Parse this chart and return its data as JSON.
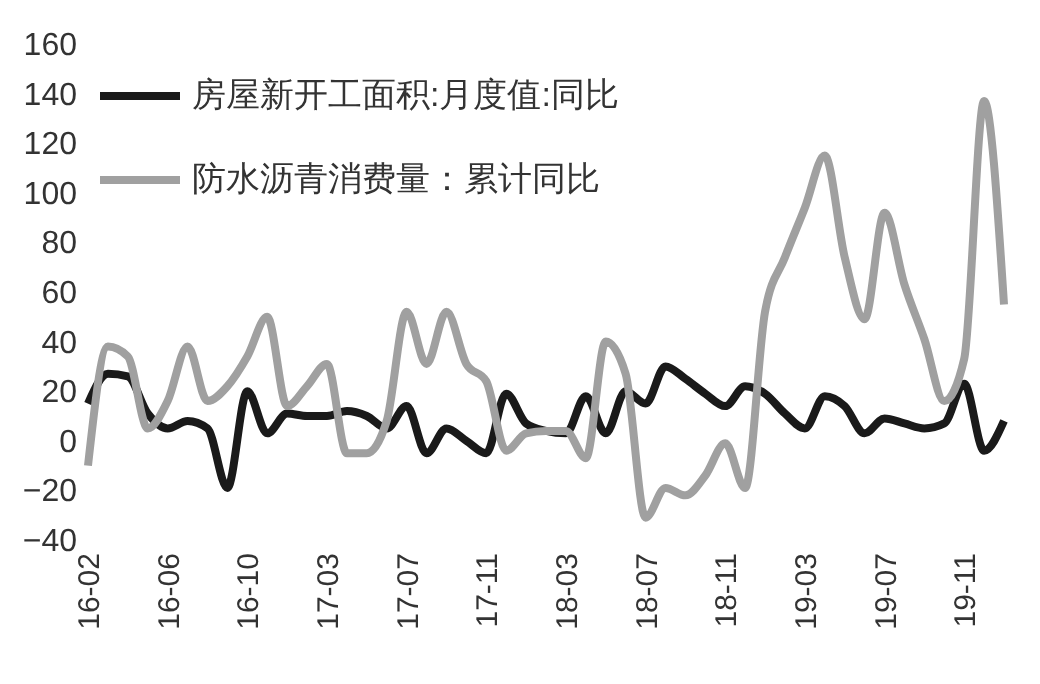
{
  "chart_data": {
    "type": "line",
    "categories": [
      "16-02",
      null,
      null,
      null,
      "16-06",
      null,
      null,
      null,
      "16-10",
      null,
      null,
      null,
      "17-03",
      null,
      null,
      null,
      "17-07",
      null,
      null,
      null,
      "17-11",
      null,
      null,
      null,
      "18-03",
      null,
      null,
      null,
      "18-07",
      null,
      null,
      null,
      "18-11",
      null,
      null,
      null,
      "19-03",
      null,
      null,
      null,
      "19-07",
      null,
      null,
      null,
      "19-11",
      null,
      null
    ],
    "series": [
      {
        "name": "房屋新开工面积:月度值:同比",
        "color": "#1a1a1a",
        "values": [
          15,
          27,
          26,
          11,
          5,
          8,
          5,
          -19,
          20,
          3,
          11,
          10,
          10,
          12,
          10,
          5,
          14,
          -5,
          5,
          0,
          -5,
          19,
          7,
          4,
          3,
          18,
          3,
          20,
          15,
          30,
          25,
          19,
          14,
          22,
          19,
          11,
          5,
          18,
          14,
          3,
          9,
          7,
          5,
          7,
          23,
          -4,
          8
        ]
      },
      {
        "name": "防水沥青消费量：累计同比",
        "color": "#a0a0a0",
        "values": [
          -10,
          38,
          34,
          5,
          16,
          38,
          16,
          22,
          34,
          50,
          14,
          22,
          31,
          -5,
          -5,
          8,
          52,
          31,
          52,
          31,
          24,
          -4,
          3,
          4,
          4,
          -7,
          40,
          27,
          -31,
          -19,
          -22,
          -14,
          -1,
          -19,
          52,
          74,
          94,
          115,
          74,
          49,
          92,
          63,
          41,
          16,
          33,
          137,
          55
        ]
      }
    ],
    "ylim": [
      -40,
      160
    ],
    "yticks": [
      -40,
      -20,
      0,
      20,
      40,
      60,
      80,
      100,
      120,
      140,
      160
    ],
    "grid": false,
    "legend": "top left",
    "line_style": "solid",
    "marker": "none"
  }
}
